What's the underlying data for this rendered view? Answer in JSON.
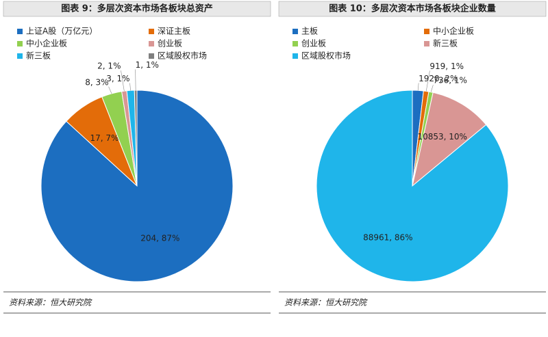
{
  "chart_data": [
    {
      "type": "pie",
      "title": "图表 9：多层次资本市场各板块总资产",
      "source": "资料来源：恒大研究院",
      "categories": [
        "上证A股（万亿元）",
        "深证主板",
        "中小企业板",
        "创业板",
        "新三板",
        "区域股权市场"
      ],
      "values": [
        204,
        17,
        8,
        2,
        3,
        1
      ],
      "value_labels": [
        "204, 87%",
        "17, 7%",
        "8, 3%",
        "2, 1%",
        "3, 1%",
        "1, 1%"
      ],
      "colors": [
        "#1c6ec0",
        "#e36c09",
        "#92d050",
        "#d99694",
        "#1fb5ea",
        "#7f7f7f"
      ]
    },
    {
      "type": "pie",
      "title": "图表 10：多层次资本市场各板块企业数量",
      "source": "资料来源：恒大研究院",
      "categories": [
        "主板",
        "中小企业板",
        "创业板",
        "新三板",
        "区域股权市场"
      ],
      "values": [
        1920,
        919,
        736,
        10853,
        88961
      ],
      "value_labels": [
        "1920, 2%",
        "919, 1%",
        "736, 1%",
        "10853, 10%",
        "88961, 86%"
      ],
      "colors": [
        "#1c6ec0",
        "#e36c09",
        "#92d050",
        "#d99694",
        "#1fb5ea"
      ]
    }
  ]
}
